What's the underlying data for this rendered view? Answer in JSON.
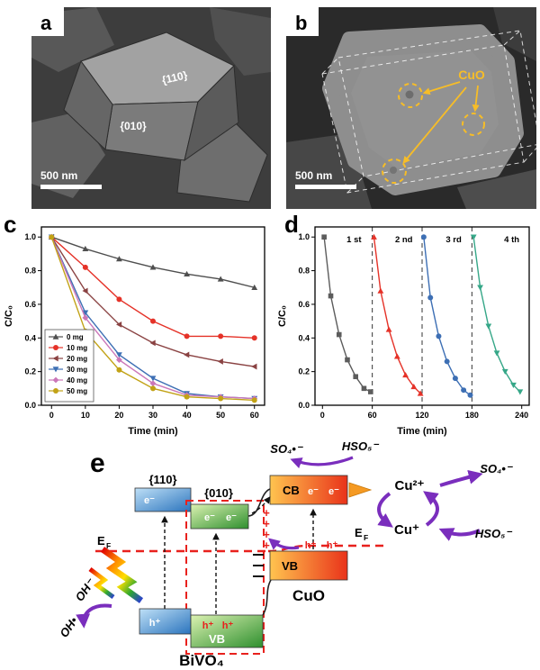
{
  "panels": {
    "a": {
      "label": "a",
      "facet_top": "{110}",
      "facet_side": "{010}",
      "scalebar": "500 nm"
    },
    "b": {
      "label": "b",
      "annotation": "CuO",
      "scalebar": "500 nm"
    },
    "c": {
      "label": "c"
    },
    "d": {
      "label": "d"
    },
    "e": {
      "label": "e",
      "facet_110": "{110}",
      "facet_010": "{010}",
      "cb": "CB",
      "vb": "VB",
      "cuo": "CuO",
      "bivo4": "BiVO₄",
      "ef": "E",
      "ef_sub": "F",
      "electron": "e⁻",
      "hole": "h⁺",
      "so4": "SO₄•⁻",
      "hso5": "HSO₅⁻",
      "cu2": "Cu²⁺",
      "cu1": "Cu⁺",
      "oh_minus": "OH⁻",
      "oh_radical": "OH•",
      "plus": "+"
    }
  },
  "chart_data": [
    {
      "id": "panel-c",
      "type": "line",
      "title": "",
      "xlabel": "Time (min)",
      "ylabel": "C/C₀",
      "xlim": [
        -3,
        63
      ],
      "ylim": [
        0,
        1.06
      ],
      "xticks": [
        0,
        10,
        20,
        30,
        40,
        50,
        60
      ],
      "yticks": [
        0,
        0.2,
        0.4,
        0.6,
        0.8,
        1
      ],
      "grid": false,
      "legend": true,
      "legend_position": "lower-left",
      "x": [
        0,
        10,
        20,
        30,
        40,
        50,
        60
      ],
      "series": [
        {
          "name": "0 mg",
          "color": "#4f4f4f",
          "marker": "triangle-up",
          "values": [
            1.0,
            0.93,
            0.87,
            0.82,
            0.78,
            0.75,
            0.7
          ]
        },
        {
          "name": "10 mg",
          "color": "#e53228",
          "marker": "circle",
          "values": [
            1.0,
            0.82,
            0.63,
            0.5,
            0.41,
            0.41,
            0.4
          ]
        },
        {
          "name": "20 mg",
          "color": "#8a4242",
          "marker": "triangle-left",
          "values": [
            1.0,
            0.68,
            0.48,
            0.37,
            0.3,
            0.26,
            0.23
          ]
        },
        {
          "name": "30 mg",
          "color": "#3d6fb4",
          "marker": "triangle-down",
          "values": [
            1.0,
            0.55,
            0.3,
            0.16,
            0.07,
            0.05,
            0.04
          ]
        },
        {
          "name": "40 mg",
          "color": "#cb77b9",
          "marker": "diamond",
          "values": [
            1.0,
            0.52,
            0.27,
            0.13,
            0.06,
            0.05,
            0.04
          ]
        },
        {
          "name": "50 mg",
          "color": "#c2a216",
          "marker": "circle",
          "values": [
            1.0,
            0.44,
            0.21,
            0.1,
            0.05,
            0.04,
            0.03
          ]
        }
      ]
    },
    {
      "id": "panel-d",
      "type": "line",
      "title": "",
      "xlabel": "Time (min)",
      "ylabel": "C/C₀",
      "xlim": [
        -9,
        249
      ],
      "ylim": [
        0,
        1.06
      ],
      "xticks": [
        0,
        60,
        120,
        180,
        240
      ],
      "yticks": [
        0,
        0.2,
        0.4,
        0.6,
        0.8,
        1
      ],
      "grid": false,
      "legend": false,
      "vlines": [
        60,
        120,
        180
      ],
      "annotations": [
        {
          "text": "1 st",
          "x": 38,
          "y": 0.97
        },
        {
          "text": "2 nd",
          "x": 98,
          "y": 0.97
        },
        {
          "text": "3 rd",
          "x": 158,
          "y": 0.97
        },
        {
          "text": "4 th",
          "x": 228,
          "y": 0.97
        }
      ],
      "series": [
        {
          "name": "1 st",
          "color": "#5c5c5c",
          "marker": "square",
          "x": [
            2,
            10,
            20,
            30,
            40,
            50,
            58
          ],
          "values": [
            1.0,
            0.65,
            0.42,
            0.27,
            0.17,
            0.1,
            0.08
          ]
        },
        {
          "name": "2 nd",
          "color": "#e53228",
          "marker": "triangle-up",
          "x": [
            62,
            70,
            80,
            90,
            100,
            110,
            118
          ],
          "values": [
            1.0,
            0.68,
            0.45,
            0.29,
            0.18,
            0.11,
            0.07
          ]
        },
        {
          "name": "3 rd",
          "color": "#3d6fb4",
          "marker": "circle",
          "x": [
            122,
            130,
            140,
            150,
            160,
            170,
            178
          ],
          "values": [
            1.0,
            0.64,
            0.41,
            0.26,
            0.16,
            0.09,
            0.06
          ]
        },
        {
          "name": "4 th",
          "color": "#36a788",
          "marker": "triangle-down",
          "x": [
            182,
            190,
            200,
            210,
            220,
            230,
            238
          ],
          "values": [
            1.0,
            0.7,
            0.47,
            0.31,
            0.2,
            0.12,
            0.08
          ]
        }
      ]
    }
  ]
}
